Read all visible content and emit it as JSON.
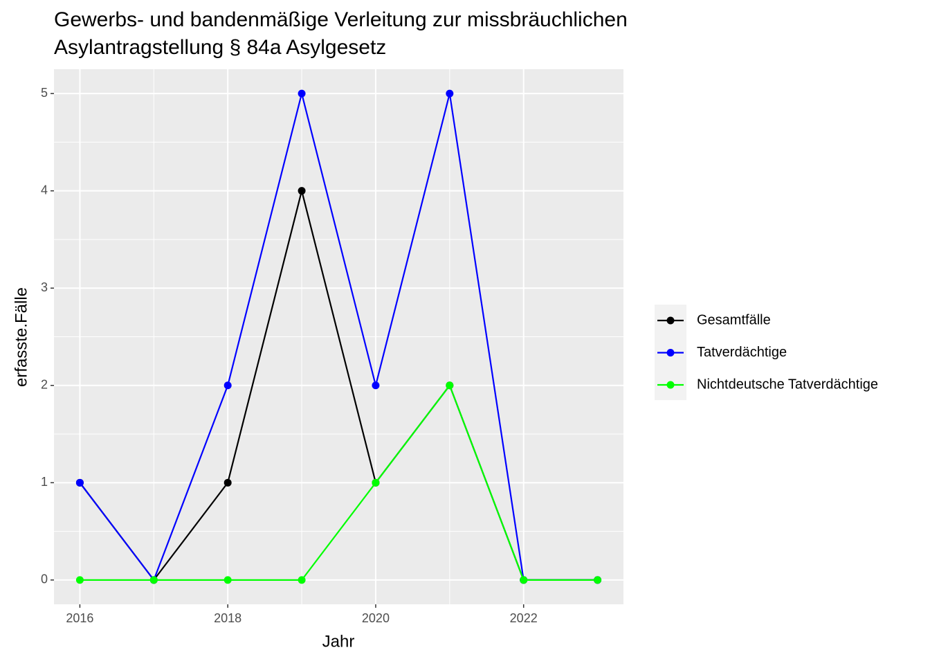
{
  "chart_data": {
    "type": "line",
    "title": [
      "Gewerbs- und bandenmäßige Verleitung zur missbräuchlichen",
      "Asylantragstellung § 84a Asylgesetz"
    ],
    "x_label": "Jahr",
    "y_label": "erfasste.Fälle",
    "x": [
      2016,
      2017,
      2018,
      2019,
      2020,
      2021,
      2022,
      2023
    ],
    "series": [
      {
        "name": "Gesamtfälle",
        "color": "#000000",
        "values": [
          1,
          0,
          1,
          4,
          1,
          2,
          0,
          0
        ]
      },
      {
        "name": "Tatverdächtige",
        "color": "#0000ff",
        "values": [
          1,
          0,
          2,
          5,
          2,
          5,
          0,
          0
        ]
      },
      {
        "name": "Nichtdeutsche Tatverdächtige",
        "color": "#00ff00",
        "values": [
          0,
          0,
          0,
          0,
          1,
          2,
          0,
          0
        ]
      }
    ],
    "xlim": [
      2015.65,
      2023.35
    ],
    "xticks": [
      2016,
      2018,
      2020,
      2022
    ],
    "ylim": [
      -0.25,
      5.25
    ],
    "yticks": [
      0,
      1,
      2,
      3,
      4,
      5
    ],
    "grid": true,
    "legend": "right"
  }
}
